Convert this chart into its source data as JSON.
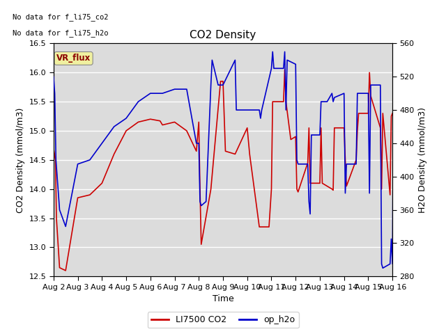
{
  "title": "CO2 Density",
  "xlabel": "Time",
  "ylabel_left": "CO2 Density (mmol/m3)",
  "ylabel_right": "H2O Density (mmol/m3)",
  "text_line1": "No data for f_li75_co2",
  "text_line2": "No data for f_li75_h2o",
  "legend_labels": [
    "LI7500 CO2",
    "op_h2o"
  ],
  "co2_color": "#cc0000",
  "h2o_color": "#0000cc",
  "vr_flux_label": "VR_flux",
  "xlim": [
    0,
    14
  ],
  "ylim_left": [
    12.5,
    16.5
  ],
  "ylim_right": [
    280,
    560
  ],
  "yticks_left": [
    12.5,
    13.0,
    13.5,
    14.0,
    14.5,
    15.0,
    15.5,
    16.0,
    16.5
  ],
  "yticks_right": [
    280,
    320,
    360,
    400,
    440,
    480,
    520,
    560
  ],
  "xtick_labels": [
    "Aug 2",
    "Aug 3",
    "Aug 4",
    "Aug 5",
    "Aug 6",
    "Aug 7",
    "Aug 8",
    "Aug 9",
    "Aug 10",
    "Aug 11",
    "Aug 12",
    "Aug 13",
    "Aug 14",
    "Aug 15",
    "Aug 16"
  ],
  "background_color": "#dcdcdc",
  "co2_x": [
    0.0,
    0.08,
    0.12,
    0.25,
    0.5,
    1.0,
    1.5,
    2.0,
    2.5,
    3.0,
    3.5,
    4.0,
    4.4,
    4.5,
    5.0,
    5.5,
    5.9,
    6.0,
    6.05,
    6.1,
    6.5,
    6.9,
    7.0,
    7.1,
    7.5,
    8.0,
    8.1,
    8.5,
    8.9,
    9.0,
    9.05,
    9.1,
    9.5,
    9.55,
    9.6,
    9.8,
    10.0,
    10.05,
    10.1,
    10.5,
    10.55,
    10.6,
    11.0,
    11.05,
    11.1,
    11.5,
    11.55,
    11.6,
    12.0,
    12.05,
    12.1,
    12.5,
    12.55,
    12.6,
    13.0,
    13.05,
    13.1,
    13.5,
    13.55,
    13.6,
    13.9,
    13.95,
    14.0
  ],
  "co2_y": [
    14.7,
    14.5,
    13.5,
    12.65,
    12.6,
    13.85,
    13.9,
    14.1,
    14.6,
    15.0,
    15.15,
    15.2,
    15.17,
    15.1,
    15.15,
    15.0,
    14.65,
    15.15,
    14.0,
    13.05,
    14.0,
    15.85,
    15.85,
    14.65,
    14.6,
    15.05,
    14.6,
    13.35,
    13.35,
    14.0,
    15.5,
    15.5,
    15.5,
    16.05,
    15.5,
    14.85,
    14.9,
    14.0,
    13.95,
    14.45,
    15.05,
    14.1,
    14.1,
    15.05,
    14.1,
    14.0,
    13.98,
    15.05,
    15.05,
    14.5,
    14.05,
    14.5,
    15.0,
    15.3,
    15.3,
    16.0,
    15.6,
    15.05,
    14.0,
    15.3,
    13.9,
    15.25,
    15.3
  ],
  "h2o_x": [
    0.0,
    0.05,
    0.1,
    0.25,
    0.5,
    1.0,
    1.5,
    2.0,
    2.5,
    3.0,
    3.5,
    4.0,
    4.5,
    5.0,
    5.5,
    5.9,
    6.0,
    6.05,
    6.1,
    6.3,
    6.5,
    6.55,
    6.8,
    7.0,
    7.5,
    7.55,
    8.0,
    8.5,
    8.55,
    8.6,
    9.0,
    9.05,
    9.1,
    9.5,
    9.55,
    9.6,
    9.65,
    10.0,
    10.05,
    10.1,
    10.5,
    10.55,
    10.6,
    10.65,
    11.0,
    11.05,
    11.1,
    11.3,
    11.5,
    11.55,
    11.6,
    12.0,
    12.05,
    12.1,
    12.5,
    12.55,
    12.6,
    13.0,
    13.05,
    13.1,
    13.5,
    13.55,
    13.6,
    13.9,
    13.95,
    14.0,
    14.05,
    14.1
  ],
  "h2o_y": [
    520,
    500,
    420,
    360,
    340,
    415,
    420,
    440,
    460,
    470,
    490,
    500,
    500,
    505,
    505,
    440,
    440,
    370,
    365,
    370,
    510,
    540,
    510,
    510,
    540,
    480,
    480,
    480,
    470,
    480,
    530,
    550,
    530,
    530,
    550,
    480,
    540,
    535,
    420,
    415,
    415,
    370,
    355,
    450,
    450,
    490,
    490,
    490,
    500,
    490,
    495,
    500,
    380,
    415,
    415,
    500,
    500,
    500,
    380,
    510,
    510,
    295,
    290,
    295,
    325,
    295,
    540,
    545
  ]
}
